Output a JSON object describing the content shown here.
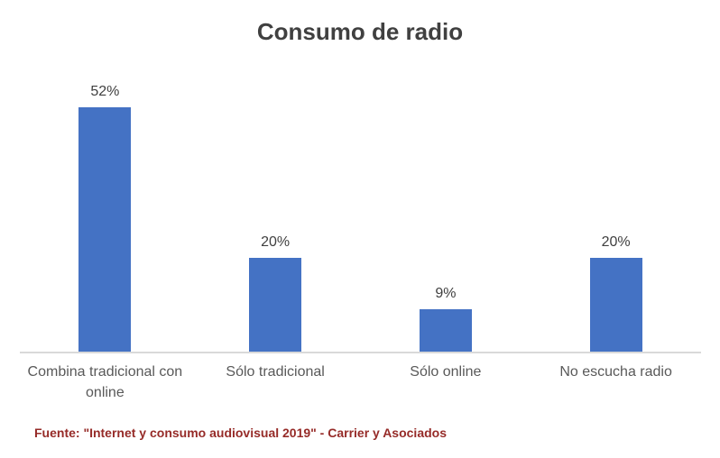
{
  "chart_data": {
    "type": "bar",
    "title": "Consumo de radio",
    "categories": [
      "Combina tradicional con online",
      "Sólo tradicional",
      "Sólo online",
      "No escucha radio"
    ],
    "values": [
      52,
      20,
      9,
      20
    ],
    "value_labels": [
      "52%",
      "20%",
      "9%",
      "20%"
    ],
    "xlabel": "",
    "ylabel": "",
    "ylim": [
      0,
      60
    ],
    "grid": false,
    "legend": false,
    "data_labels_position": "outside-end",
    "bar_color": "#4472C4"
  },
  "footer": {
    "source": "Fuente: \"Internet y consumo audiovisual 2019\" - Carrier y Asociados"
  },
  "colors": {
    "background": "#FFFFFF",
    "title": "#404040",
    "data_label": "#404040",
    "category_label": "#595959",
    "axis_line": "#D9D9D9",
    "source_text": "#962B28"
  }
}
